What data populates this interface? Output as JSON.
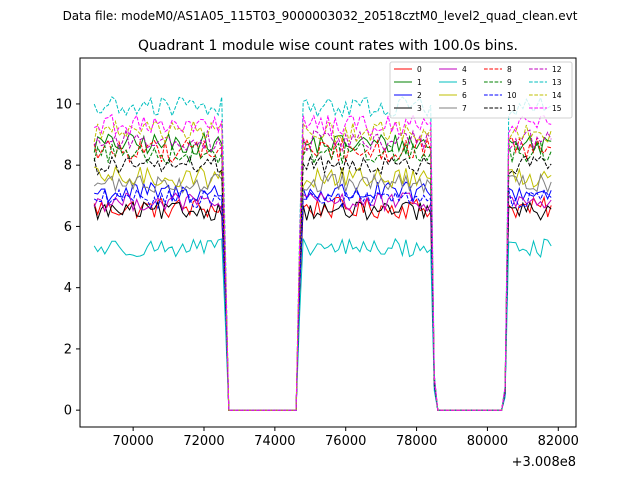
{
  "chart_data": {
    "type": "line",
    "suptitle": "Data file: modeM0/AS1A05_115T03_9000003032_20518cztM0_level2_quad_clean.evt",
    "title": "Quadrant 1 module wise count rates with 100.0s bins.",
    "xlabel": "",
    "ylabel": "",
    "x_offset_label": "+3.008e8",
    "xlim": [
      68500,
      82500
    ],
    "ylim": [
      -0.55,
      11.5
    ],
    "x_ticks": [
      70000,
      72000,
      74000,
      76000,
      78000,
      80000,
      82000
    ],
    "x_tick_labels": [
      "70000",
      "72000",
      "74000",
      "76000",
      "78000",
      "80000",
      "82000"
    ],
    "y_ticks": [
      0,
      2,
      4,
      6,
      8,
      10
    ],
    "y_tick_labels": [
      "0",
      "2",
      "4",
      "6",
      "8",
      "10"
    ],
    "legend_position": "top-right",
    "gaps": [
      [
        72600,
        74700
      ],
      [
        78500,
        80550
      ]
    ],
    "segments": [
      [
        68900,
        72500
      ],
      [
        74800,
        78400
      ],
      [
        80600,
        81850
      ]
    ],
    "bin": 100,
    "series": [
      {
        "name": "0",
        "color": "#ff0000",
        "dash": "solid",
        "level": 6.6,
        "amp": 0.35
      },
      {
        "name": "1",
        "color": "#008000",
        "dash": "solid",
        "level": 8.7,
        "amp": 0.35
      },
      {
        "name": "2",
        "color": "#0000ff",
        "dash": "solid",
        "level": 7.1,
        "amp": 0.35
      },
      {
        "name": "3",
        "color": "#000000",
        "dash": "solid",
        "level": 6.5,
        "amp": 0.3
      },
      {
        "name": "4",
        "color": "#bf00bf",
        "dash": "solid",
        "level": 6.8,
        "amp": 0.3
      },
      {
        "name": "5",
        "color": "#00bfbf",
        "dash": "solid",
        "level": 5.3,
        "amp": 0.3
      },
      {
        "name": "6",
        "color": "#bfbf00",
        "dash": "solid",
        "level": 7.6,
        "amp": 0.35
      },
      {
        "name": "7",
        "color": "#808080",
        "dash": "solid",
        "level": 7.4,
        "amp": 0.3
      },
      {
        "name": "8",
        "color": "#ff0000",
        "dash": "dashed",
        "level": 8.5,
        "amp": 0.4
      },
      {
        "name": "9",
        "color": "#008000",
        "dash": "dashed",
        "level": 8.4,
        "amp": 0.35
      },
      {
        "name": "10",
        "color": "#0000ff",
        "dash": "dashed",
        "level": 6.9,
        "amp": 0.3
      },
      {
        "name": "11",
        "color": "#000000",
        "dash": "dashed",
        "level": 8.0,
        "amp": 0.3
      },
      {
        "name": "12",
        "color": "#bf00bf",
        "dash": "dashed",
        "level": 8.8,
        "amp": 0.35
      },
      {
        "name": "13",
        "color": "#00bfbf",
        "dash": "dashed",
        "level": 9.9,
        "amp": 0.35
      },
      {
        "name": "14",
        "color": "#bfbf00",
        "dash": "dashed",
        "level": 9.1,
        "amp": 0.35
      },
      {
        "name": "15",
        "color": "#ff00ff",
        "dash": "dashed",
        "level": 9.3,
        "amp": 0.35
      }
    ]
  }
}
